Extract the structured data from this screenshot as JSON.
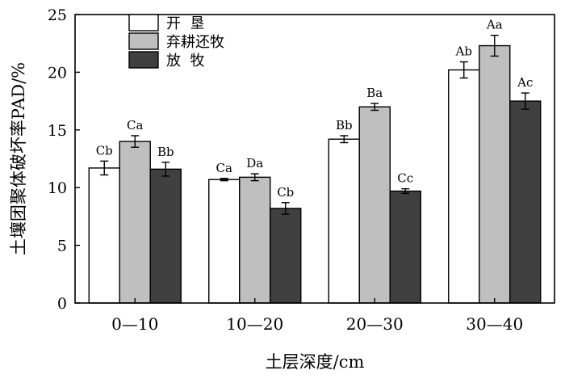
{
  "chart_data": {
    "type": "bar",
    "xlabel": "土层深度/cm",
    "ylabel": "土壤团聚体破坏率PAD/%",
    "ylim": [
      0,
      25
    ],
    "yticks": [
      0,
      5,
      10,
      15,
      20,
      25
    ],
    "categories": [
      "0—10",
      "10—20",
      "20—30",
      "30—40"
    ],
    "legend_position": "top-left",
    "series": [
      {
        "name": "开  垦",
        "color": "#ffffff",
        "values": [
          11.7,
          10.7,
          14.2,
          20.2
        ],
        "errors": [
          0.6,
          0.1,
          0.3,
          0.7
        ],
        "labels": [
          "Cb",
          "Ca",
          "Bb",
          "Ab"
        ]
      },
      {
        "name": "弃耕还牧",
        "color": "#bfbfbf",
        "values": [
          14.0,
          10.9,
          17.0,
          22.3
        ],
        "errors": [
          0.5,
          0.3,
          0.3,
          0.9
        ],
        "labels": [
          "Ca",
          "Da",
          "Ba",
          "Aa"
        ]
      },
      {
        "name": "放  牧",
        "color": "#404040",
        "values": [
          11.6,
          8.2,
          9.7,
          17.5
        ],
        "errors": [
          0.6,
          0.5,
          0.2,
          0.7
        ],
        "labels": [
          "Bb",
          "Cb",
          "Cc",
          "Ac"
        ]
      }
    ]
  }
}
